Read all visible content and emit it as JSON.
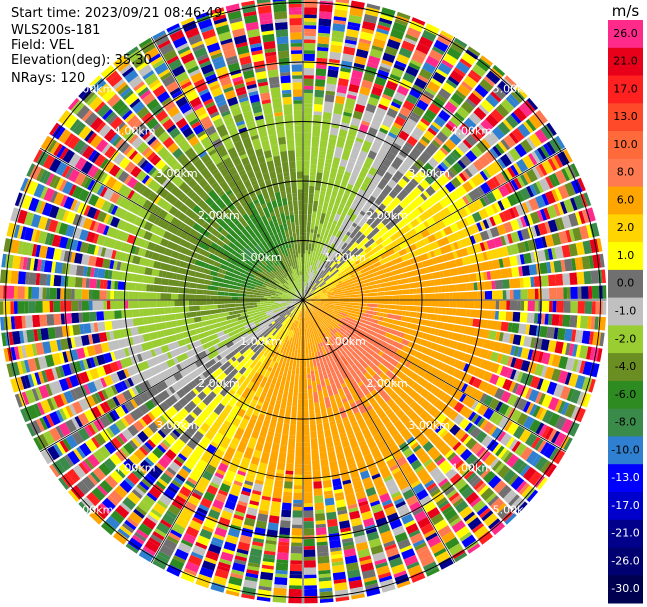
{
  "header": {
    "start_time": "Start time: 2023/09/21 08:46:49",
    "instrument": "WLS200s-181",
    "field": "Field: VEL",
    "elevation": "Elevation(deg): 35.30",
    "nrays": "NRays: 120"
  },
  "chart_data": {
    "type": "ppi-polar-heatmap",
    "field": "VEL",
    "units": "m/s",
    "start_time": "2023/09/21 08:46:49",
    "site": "WLS200s-181",
    "elevation_deg": 35.3,
    "n_rays": 120,
    "range_rings_km": [
      1.0,
      2.0,
      3.0,
      4.0,
      5.0
    ],
    "ring_labels": [
      "1.00km",
      "2.00km",
      "3.00km",
      "4.00km",
      "5.00km"
    ],
    "max_range_km": 5.1,
    "colorbar": {
      "unit": "m/s",
      "ticks": [
        "26.0",
        "21.0",
        "17.0",
        "13.0",
        "10.0",
        "8.0",
        "6.0",
        "2.0",
        "1.0",
        "0.0",
        "-1.0",
        "-2.0",
        "-4.0",
        "-6.0",
        "-8.0",
        "-10.0",
        "-13.0",
        "-17.0",
        "-21.0",
        "-26.0",
        "-30.0"
      ],
      "colors": [
        "#ff2a8a",
        "#e8001a",
        "#ff2020",
        "#ff4a2a",
        "#ff6a3a",
        "#ff7a50",
        "#ffa500",
        "#ffd400",
        "#ffff00",
        "#707070",
        "#c0c0c0",
        "#9acd32",
        "#6b8e23",
        "#2e8b22",
        "#3a8a4a",
        "#2f80d0",
        "#0000ff",
        "#0000cc",
        "#00008b",
        "#000070",
        "#000050"
      ],
      "label_colors": [
        "#000000",
        "#000000",
        "#000000",
        "#000000",
        "#000000",
        "#000000",
        "#000000",
        "#000000",
        "#000000",
        "#000000",
        "#000000",
        "#000000",
        "#000000",
        "#000000",
        "#000000",
        "#000000",
        "#ffffff",
        "#ffffff",
        "#ffffff",
        "#ffffff",
        "#ffffff"
      ]
    },
    "velocity_model": {
      "description": "radial velocity: negative (approaching, green/blue) to the north-west, positive (receding, yellow/orange/red) to the south-east",
      "positive_azimuth_deg": 135,
      "inner_peak_ms": 8.5,
      "outer_noise_start_km": 3.2
    },
    "palette": {
      "noise": [
        "#ff2020",
        "#ffd400",
        "#ffff00",
        "#2f80d0",
        "#2e8b22",
        "#ff7a50",
        "#707070",
        "#0000ff",
        "#ffa500",
        "#9acd32",
        "#ff2a8a",
        "#00008b",
        "#c0c0c0",
        "#3a8a4a",
        "#e8001a",
        "#6b8e23"
      ]
    }
  }
}
